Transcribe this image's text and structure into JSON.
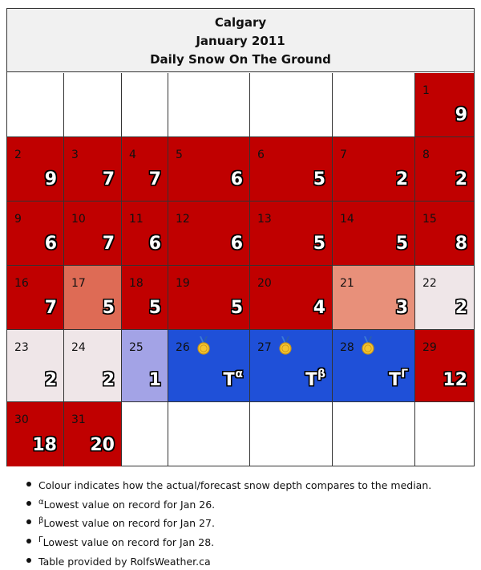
{
  "header": {
    "city": "Calgary",
    "month": "January 2011",
    "subtitle": "Daily Snow On The Ground"
  },
  "colors": {
    "above": "#c00000",
    "slightly_below": "#de6b55",
    "below": "#e8907a",
    "near_zero": "#efe6e8",
    "well_below": "#a3a3e6",
    "record_low": "#1f50d8"
  },
  "days": [
    {
      "day": "1",
      "value": "9",
      "status": "above"
    },
    {
      "day": "2",
      "value": "9",
      "status": "above"
    },
    {
      "day": "3",
      "value": "7",
      "status": "above"
    },
    {
      "day": "4",
      "value": "7",
      "status": "above"
    },
    {
      "day": "5",
      "value": "6",
      "status": "above"
    },
    {
      "day": "6",
      "value": "5",
      "status": "above"
    },
    {
      "day": "7",
      "value": "2",
      "status": "above"
    },
    {
      "day": "8",
      "value": "2",
      "status": "above"
    },
    {
      "day": "9",
      "value": "6",
      "status": "above"
    },
    {
      "day": "10",
      "value": "7",
      "status": "above"
    },
    {
      "day": "11",
      "value": "6",
      "status": "above"
    },
    {
      "day": "12",
      "value": "6",
      "status": "above"
    },
    {
      "day": "13",
      "value": "5",
      "status": "above"
    },
    {
      "day": "14",
      "value": "5",
      "status": "above"
    },
    {
      "day": "15",
      "value": "8",
      "status": "above"
    },
    {
      "day": "16",
      "value": "7",
      "status": "above"
    },
    {
      "day": "17",
      "value": "5",
      "status": "slightly_below"
    },
    {
      "day": "18",
      "value": "5",
      "status": "above"
    },
    {
      "day": "19",
      "value": "5",
      "status": "above"
    },
    {
      "day": "20",
      "value": "4",
      "status": "above"
    },
    {
      "day": "21",
      "value": "3",
      "status": "below"
    },
    {
      "day": "22",
      "value": "2",
      "status": "near_zero"
    },
    {
      "day": "23",
      "value": "2",
      "status": "near_zero"
    },
    {
      "day": "24",
      "value": "2",
      "status": "near_zero"
    },
    {
      "day": "25",
      "value": "1",
      "status": "well_below"
    },
    {
      "day": "26",
      "value": "T",
      "note": "α",
      "status": "record_low",
      "medal": "medal-icon"
    },
    {
      "day": "27",
      "value": "T",
      "note": "β",
      "status": "record_low",
      "medal": "medal-icon"
    },
    {
      "day": "28",
      "value": "T",
      "note": "Γ",
      "status": "record_low",
      "medal": "medal-icon"
    },
    {
      "day": "29",
      "value": "12",
      "status": "above"
    },
    {
      "day": "30",
      "value": "18",
      "status": "above"
    },
    {
      "day": "31",
      "value": "20",
      "status": "above"
    }
  ],
  "notes": [
    {
      "sup": "",
      "text": "Colour indicates how the actual/forecast snow depth compares to the median."
    },
    {
      "sup": "α",
      "text": "Lowest value on record for Jan 26."
    },
    {
      "sup": "β",
      "text": "Lowest value on record for Jan 27."
    },
    {
      "sup": "Γ",
      "text": "Lowest value on record for Jan 28."
    },
    {
      "sup": "",
      "text": "Table provided by RolfsWeather.ca"
    }
  ]
}
